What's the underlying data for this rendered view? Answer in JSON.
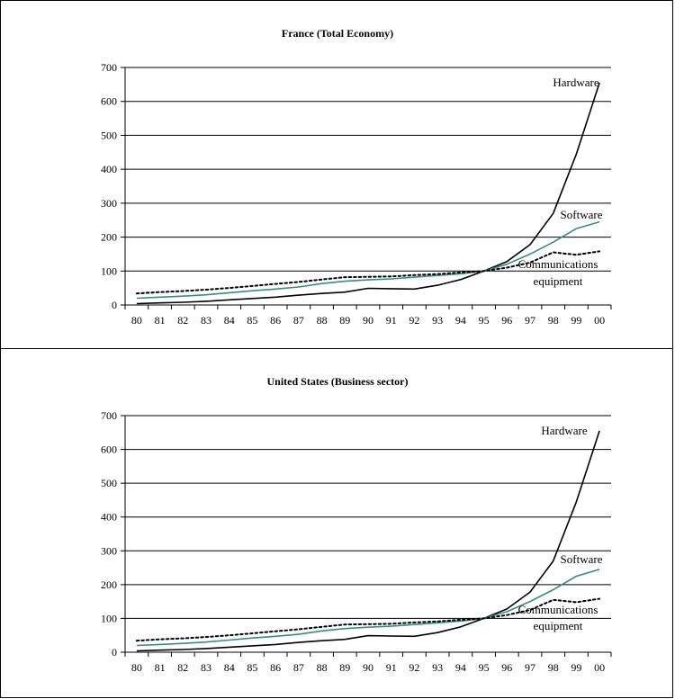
{
  "chart_data": [
    {
      "type": "line",
      "title": "France (Total Economy)",
      "categories": [
        "80",
        "81",
        "82",
        "83",
        "84",
        "85",
        "86",
        "87",
        "88",
        "89",
        "90",
        "91",
        "92",
        "93",
        "94",
        "95",
        "96",
        "97",
        "98",
        "99",
        "00"
      ],
      "ylim": [
        0,
        700
      ],
      "yticks": [
        "0",
        "100",
        "200",
        "300",
        "400",
        "500",
        "600",
        "700"
      ],
      "grid": true,
      "series": [
        {
          "name": "Hardware",
          "color": "#000000",
          "dash": "solid",
          "values": [
            4,
            6,
            8,
            11,
            15,
            19,
            23,
            29,
            34,
            38,
            49,
            48,
            47,
            58,
            75,
            100,
            128,
            178,
            270,
            445,
            655
          ]
        },
        {
          "name": "Software",
          "color": "#3a8c7a",
          "dash": "solid",
          "values": [
            20,
            23,
            26,
            30,
            36,
            42,
            47,
            53,
            63,
            70,
            74,
            77,
            82,
            87,
            92,
            100,
            120,
            150,
            185,
            225,
            245
          ]
        },
        {
          "name": "Communications equipment",
          "color": "#000000",
          "dash": "dotted",
          "values": [
            34,
            38,
            41,
            45,
            50,
            56,
            62,
            68,
            75,
            82,
            83,
            84,
            88,
            91,
            96,
            100,
            110,
            125,
            155,
            148,
            158
          ]
        }
      ],
      "annotations": [
        {
          "text": "Hardware"
        },
        {
          "text": "Software"
        },
        {
          "text": "Communications"
        },
        {
          "text": "equipment"
        }
      ]
    },
    {
      "type": "line",
      "title": "United States (Business sector)",
      "categories": [
        "80",
        "81",
        "82",
        "83",
        "84",
        "85",
        "86",
        "87",
        "88",
        "89",
        "90",
        "91",
        "92",
        "93",
        "94",
        "95",
        "96",
        "97",
        "98",
        "99",
        "00"
      ],
      "ylim": [
        0,
        700
      ],
      "yticks": [
        "0",
        "100",
        "200",
        "300",
        "400",
        "500",
        "600",
        "700"
      ],
      "grid": true,
      "series": [
        {
          "name": "Hardware",
          "color": "#000000",
          "dash": "solid",
          "values": [
            4,
            6,
            8,
            11,
            15,
            19,
            23,
            29,
            34,
            38,
            49,
            48,
            47,
            58,
            75,
            100,
            128,
            178,
            270,
            445,
            655
          ]
        },
        {
          "name": "Software",
          "color": "#3a8c7a",
          "dash": "solid",
          "values": [
            20,
            23,
            26,
            30,
            36,
            42,
            47,
            53,
            63,
            70,
            74,
            77,
            82,
            87,
            92,
            100,
            120,
            150,
            185,
            225,
            245
          ]
        },
        {
          "name": "Communications equipment",
          "color": "#000000",
          "dash": "dotted",
          "values": [
            34,
            38,
            41,
            45,
            50,
            56,
            62,
            68,
            75,
            82,
            83,
            84,
            88,
            91,
            96,
            100,
            110,
            125,
            155,
            148,
            158
          ]
        }
      ],
      "annotations": [
        {
          "text": "Hardware"
        },
        {
          "text": "Software"
        },
        {
          "text": "Communications"
        },
        {
          "text": "equipment"
        }
      ]
    }
  ]
}
